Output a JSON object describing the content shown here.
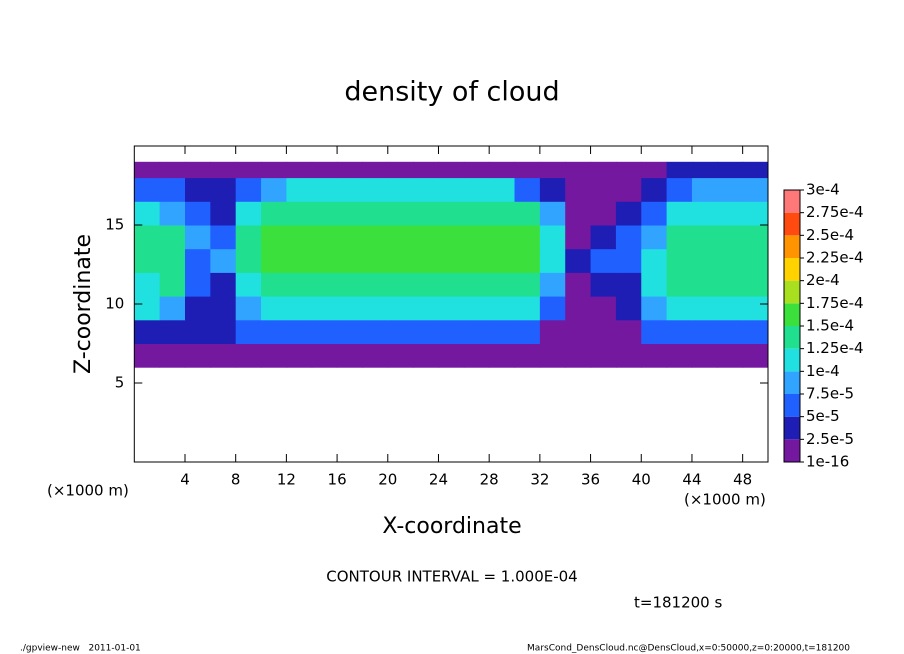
{
  "chart_data": {
    "type": "heatmap",
    "title": "density of cloud",
    "x_label": "X-coordinate",
    "y_label": "Z-coordinate",
    "x_unit": "(×1000 m)",
    "y_unit": "(×1000 m)",
    "xlim": [
      0,
      50
    ],
    "ylim": [
      0,
      20
    ],
    "xticks": [
      4,
      8,
      12,
      16,
      20,
      24,
      28,
      32,
      36,
      40,
      44,
      48
    ],
    "yticks": [
      5,
      10,
      15
    ],
    "x": [
      0,
      2,
      4,
      6,
      8,
      10,
      12,
      14,
      16,
      18,
      20,
      22,
      24,
      26,
      28,
      30,
      32,
      34,
      36,
      38,
      40,
      42,
      44,
      46,
      48,
      50
    ],
    "z": [
      6,
      7.5,
      9,
      10.5,
      12,
      13.5,
      15,
      16.5,
      18,
      19
    ],
    "values": [
      [
        1e-05,
        1e-05,
        1.5e-05,
        1.5e-05,
        1.5e-05,
        1.5e-05,
        1.5e-05,
        1.5e-05,
        1.5e-05,
        1.5e-05,
        1.5e-05,
        1.5e-05,
        1.5e-05,
        1.5e-05,
        1.5e-05,
        1.5e-05,
        1e-05,
        1e-05,
        1.5e-05,
        1.5e-05,
        1.5e-05,
        1.5e-05,
        1.5e-05,
        1.5e-05,
        1.5e-05
      ],
      [
        3e-05,
        4e-05,
        4e-05,
        4e-05,
        7e-05,
        7e-05,
        7e-05,
        7e-05,
        7e-05,
        7e-05,
        7e-05,
        7e-05,
        7e-05,
        7e-05,
        7e-05,
        7e-05,
        2e-05,
        1e-05,
        1e-05,
        2e-05,
        6e-05,
        7e-05,
        7e-05,
        7e-05,
        7e-05
      ],
      [
        0.0001,
        8e-05,
        3e-05,
        4e-05,
        9e-05,
        0.00011,
        0.00011,
        0.00011,
        0.00011,
        0.00011,
        0.00011,
        0.00011,
        0.00011,
        0.00011,
        0.00011,
        0.00011,
        5e-05,
        1e-05,
        2e-05,
        3e-05,
        9e-05,
        0.00011,
        0.00011,
        0.00011,
        0.00011
      ],
      [
        0.00012,
        0.00013,
        5e-05,
        3e-05,
        0.00011,
        0.00014,
        0.00014,
        0.00014,
        0.00014,
        0.00014,
        0.00014,
        0.00014,
        0.00014,
        0.00014,
        0.00014,
        0.00014,
        9e-05,
        2e-05,
        3e-05,
        4e-05,
        0.00012,
        0.00014,
        0.00014,
        0.00014,
        0.00014
      ],
      [
        0.00014,
        0.00014,
        6e-05,
        9e-05,
        0.00013,
        0.000155,
        0.000155,
        0.000155,
        0.000155,
        0.000155,
        0.000155,
        0.000155,
        0.000155,
        0.000155,
        0.000155,
        0.000155,
        0.00011,
        3e-05,
        5e-05,
        6e-05,
        0.00011,
        0.00014,
        0.00014,
        0.00014,
        0.00014
      ],
      [
        0.00013,
        0.00013,
        8e-05,
        5e-05,
        0.00013,
        0.000155,
        0.000155,
        0.000155,
        0.000155,
        0.000155,
        0.000155,
        0.000155,
        0.000155,
        0.000155,
        0.000155,
        0.000155,
        0.00011,
        2e-05,
        3e-05,
        5e-05,
        8e-05,
        0.000135,
        0.000135,
        0.000135,
        0.000135
      ],
      [
        0.00011,
        9e-05,
        6e-05,
        4e-05,
        0.00012,
        0.00014,
        0.00014,
        0.00014,
        0.00014,
        0.00014,
        0.00014,
        0.00014,
        0.00014,
        0.00014,
        0.00014,
        0.00014,
        8e-05,
        2e-05,
        2e-05,
        4e-05,
        5e-05,
        0.0001,
        0.00012,
        0.00012,
        0.00012
      ],
      [
        6e-05,
        5e-05,
        4e-05,
        3e-05,
        6e-05,
        9e-05,
        0.00011,
        0.00011,
        0.00011,
        0.00011,
        0.00011,
        0.00011,
        0.00011,
        0.00011,
        0.00011,
        7e-05,
        4e-05,
        2e-05,
        2e-05,
        2e-05,
        3e-05,
        6e-05,
        9e-05,
        9e-05,
        9e-05
      ],
      [
        1e-05,
        1e-05,
        1e-05,
        1e-05,
        1e-05,
        1e-05,
        1e-05,
        1e-05,
        1e-05,
        1e-05,
        1e-05,
        1e-05,
        1e-05,
        1e-05,
        1e-05,
        1e-05,
        1e-05,
        1e-05,
        1e-05,
        1e-05,
        1e-05,
        3e-05,
        3e-05,
        3e-05,
        3e-05
      ]
    ],
    "levels": [
      {
        "value": 1e-16,
        "label": "1e-16"
      },
      {
        "value": 2.5e-05,
        "label": "2.5e-5"
      },
      {
        "value": 5e-05,
        "label": "5e-5"
      },
      {
        "value": 7.5e-05,
        "label": "7.5e-5"
      },
      {
        "value": 0.0001,
        "label": "1e-4"
      },
      {
        "value": 0.000125,
        "label": "1.25e-4"
      },
      {
        "value": 0.00015,
        "label": "1.5e-4"
      },
      {
        "value": 0.000175,
        "label": "1.75e-4"
      },
      {
        "value": 0.0002,
        "label": "2e-4"
      },
      {
        "value": 0.000225,
        "label": "2.25e-4"
      },
      {
        "value": 0.00025,
        "label": "2.5e-4"
      },
      {
        "value": 0.000275,
        "label": "2.75e-4"
      },
      {
        "value": 0.0003,
        "label": "3e-4"
      }
    ],
    "colors": [
      "#7418a0",
      "#1e1eb4",
      "#2060ff",
      "#30a4ff",
      "#20e0e0",
      "#20e090",
      "#3ce03c",
      "#a8e020",
      "#ffd200",
      "#ff9400",
      "#ff4a10",
      "#ff7878"
    ],
    "contour_note": "CONTOUR INTERVAL = 1.000E-04",
    "time_label": "t=181200 s",
    "footer_left": "./gpview-new   2011-01-01",
    "footer_right": "MarsCond_DensCloud.nc@DensCloud,x=0:50000,z=0:20000,t=181200"
  }
}
